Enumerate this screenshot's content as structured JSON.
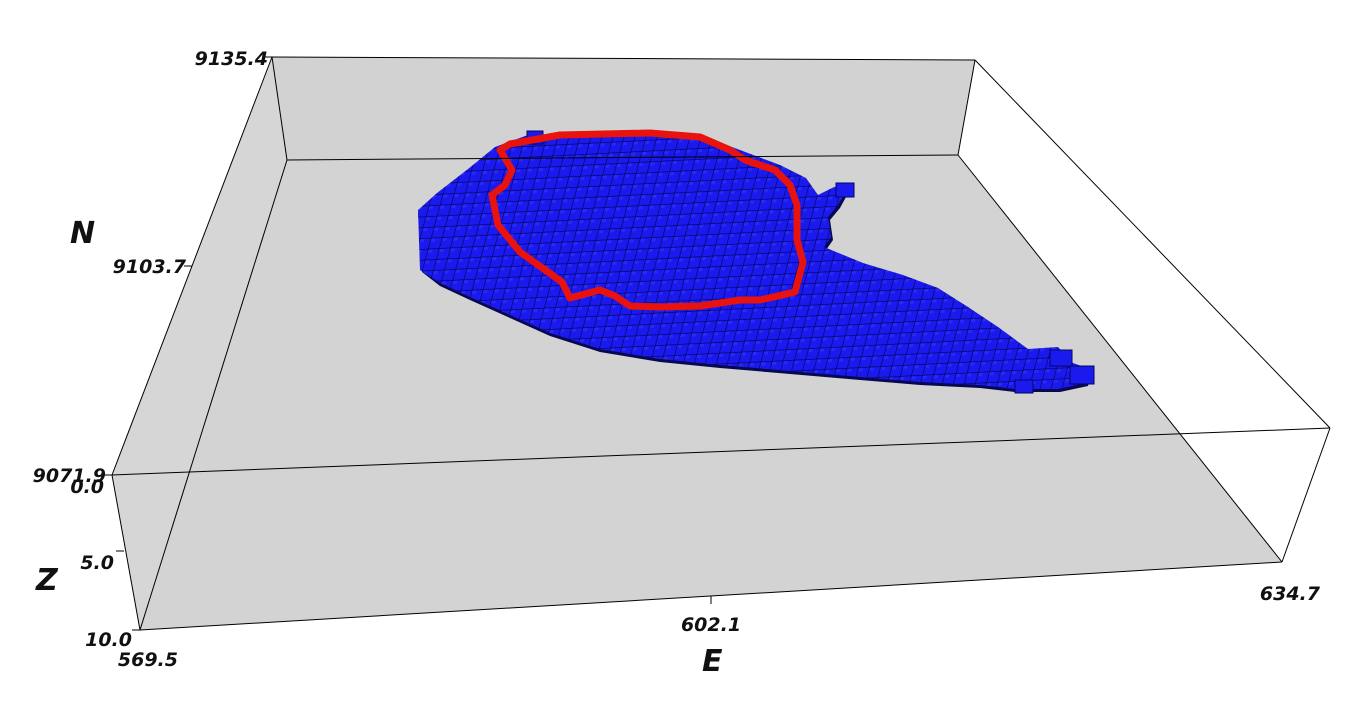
{
  "chart_data": {
    "type": "3d-voxel",
    "axes": {
      "x": {
        "label": "E",
        "ticks": [
          "569.5",
          "602.1",
          "634.7"
        ],
        "range": [
          569.5,
          634.7
        ]
      },
      "y": {
        "label": "N",
        "ticks": [
          "9071.9",
          "9103.7",
          "9135.4"
        ],
        "range": [
          9071.9,
          9135.4
        ]
      },
      "z": {
        "label": "Z",
        "ticks": [
          "0.0",
          "5.0",
          "10.0"
        ],
        "range": [
          0.0,
          10.0
        ]
      }
    },
    "series": [
      {
        "kind": "voxel-blocks",
        "color": "#1a1aff"
      },
      {
        "kind": "outline",
        "color": "#e01010"
      }
    ],
    "floor_color": "#d3d3d3",
    "grid": false,
    "legend": "none"
  }
}
